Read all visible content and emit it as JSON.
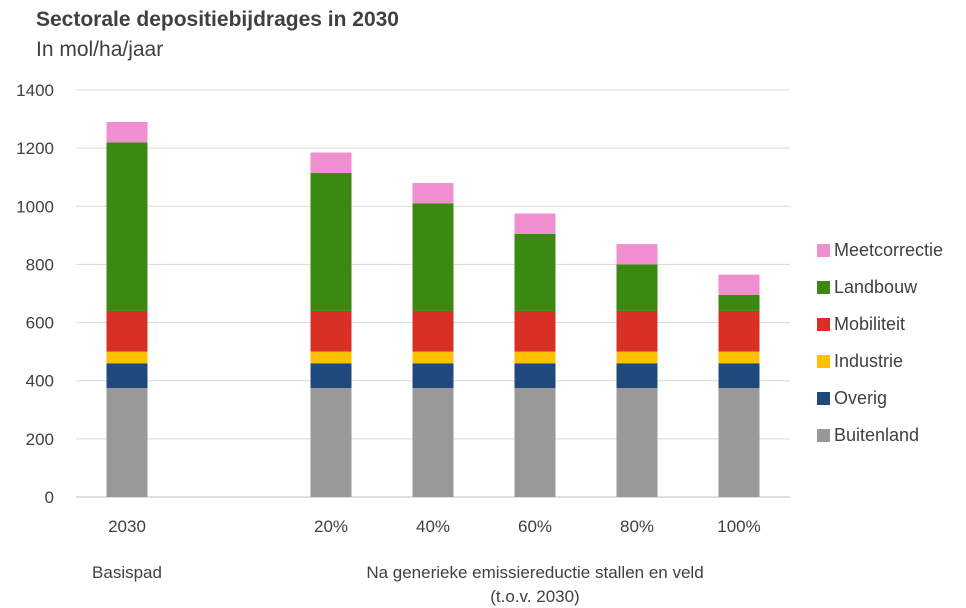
{
  "chart_data": {
    "type": "bar",
    "stacked": true,
    "title": "Sectorale depositiebijdrages in 2030",
    "subtitle": "In mol/ha/jaar",
    "categories": [
      "2030",
      "",
      "20%",
      "40%",
      "60%",
      "80%",
      "100%"
    ],
    "groups": [
      {
        "label": "Basispad"
      },
      {
        "label": "Na generieke emissiereductie stallen en veld",
        "sublabel": "(t.o.v. 2030)"
      }
    ],
    "ylim": [
      0,
      1400
    ],
    "yticks": [
      0,
      200,
      400,
      600,
      800,
      1000,
      1200,
      1400
    ],
    "grid": true,
    "legend_position": "right",
    "series": [
      {
        "name": "Buitenland",
        "color": "#999999",
        "values": [
          375,
          null,
          375,
          375,
          375,
          375,
          375
        ]
      },
      {
        "name": "Overig",
        "color": "#1f497d",
        "values": [
          85,
          null,
          85,
          85,
          85,
          85,
          85
        ]
      },
      {
        "name": "Industrie",
        "color": "#ffc000",
        "values": [
          40,
          null,
          40,
          40,
          40,
          40,
          40
        ]
      },
      {
        "name": "Mobiliteit",
        "color": "#d93025",
        "values": [
          140,
          null,
          140,
          140,
          140,
          140,
          140
        ]
      },
      {
        "name": "Landbouw",
        "color": "#3a8a11",
        "values": [
          580,
          null,
          475,
          370,
          265,
          160,
          55
        ]
      },
      {
        "name": "Meetcorrectie",
        "color": "#f08fd0",
        "values": [
          70,
          null,
          70,
          70,
          70,
          70,
          70
        ]
      }
    ]
  }
}
